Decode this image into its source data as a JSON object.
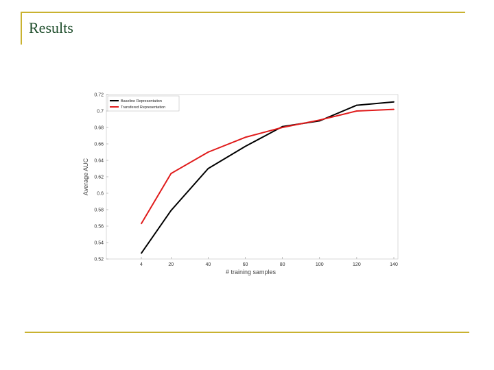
{
  "slide": {
    "title": "Results"
  },
  "colors": {
    "accent_rule": "#c9b230",
    "title_text": "#1e4d2b",
    "baseline_series": "#000000",
    "transferred_series": "#e01b1b"
  },
  "chart_data": {
    "type": "line",
    "title": "",
    "xlabel": "# training samples",
    "ylabel": "Average AUC",
    "x": [
      4,
      20,
      40,
      60,
      80,
      100,
      120,
      140
    ],
    "xtick_labels": [
      "4",
      "20",
      "40",
      "60",
      "80",
      "100",
      "120",
      "140"
    ],
    "ytick_labels": [
      "0.52",
      "0.54",
      "0.56",
      "0.58",
      "0.6",
      "0.62",
      "0.64",
      "0.66",
      "0.68",
      "0.7",
      "0.72"
    ],
    "ylim": [
      0.52,
      0.72
    ],
    "grid": false,
    "legend_position": "top-left",
    "series": [
      {
        "name": "Baseline Representation",
        "color": "#000000",
        "values": [
          0.527,
          0.579,
          0.63,
          0.657,
          0.681,
          0.688,
          0.707,
          0.711
        ]
      },
      {
        "name": "Transfered Representation",
        "color": "#e01b1b",
        "values": [
          0.563,
          0.624,
          0.65,
          0.668,
          0.68,
          0.689,
          0.7,
          0.702
        ]
      }
    ]
  }
}
